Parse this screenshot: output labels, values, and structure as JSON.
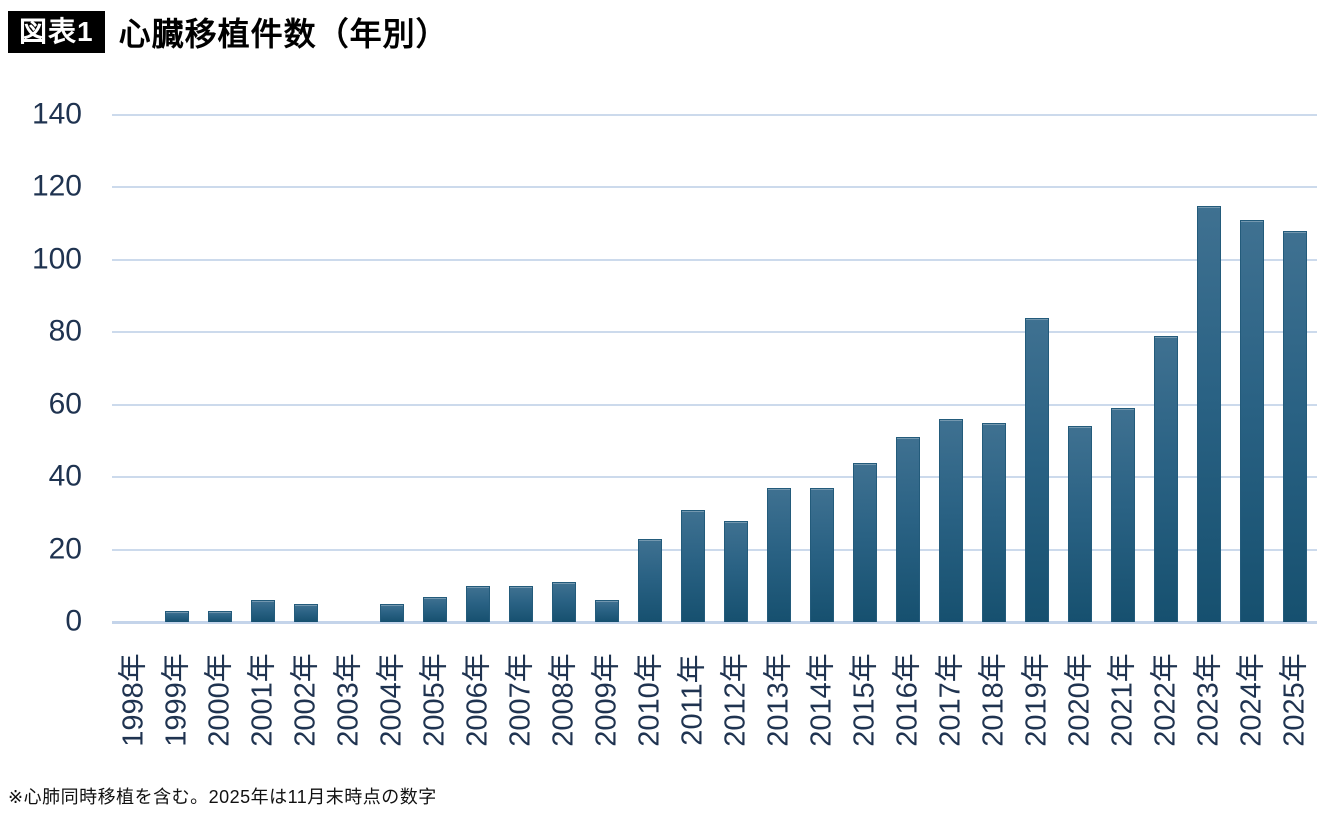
{
  "header": {
    "badge": "図表1",
    "title": "心臓移植件数（年別）"
  },
  "footnote": "※心肺同時移植を含む。2025年は11月末時点の数字",
  "colors": {
    "bar_top": "#3f7191",
    "bar_mid": "#2a6284",
    "bar_bottom": "#16506f",
    "bar_border": "#235b7b",
    "gridline": "#ccdaec",
    "baseline": "#c4d4ea",
    "axis_label": "#1f3350",
    "title": "#000000",
    "badge_bg": "#000000",
    "badge_fg": "#ffffff"
  },
  "chart_data": {
    "type": "bar",
    "title": "心臓移植件数（年別）",
    "categories": [
      "1998年",
      "1999年",
      "2000年",
      "2001年",
      "2002年",
      "2003年",
      "2004年",
      "2005年",
      "2006年",
      "2007年",
      "2008年",
      "2009年",
      "2010年",
      "2011年",
      "2012年",
      "2013年",
      "2014年",
      "2015年",
      "2016年",
      "2017年",
      "2018年",
      "2019年",
      "2020年",
      "2021年",
      "2022年",
      "2023年",
      "2024年",
      "2025年"
    ],
    "values": [
      0,
      3,
      3,
      6,
      5,
      0,
      5,
      7,
      10,
      10,
      11,
      6,
      23,
      31,
      28,
      37,
      37,
      44,
      51,
      56,
      55,
      84,
      54,
      59,
      79,
      115,
      111,
      108
    ],
    "xlabel": "",
    "ylabel": "",
    "ylim": [
      0,
      140
    ],
    "yticks": [
      0,
      20,
      40,
      60,
      80,
      100,
      120,
      140
    ],
    "grid": true,
    "legend": false,
    "note": "※心肺同時移植を含む。2025年は11月末時点の数字"
  }
}
